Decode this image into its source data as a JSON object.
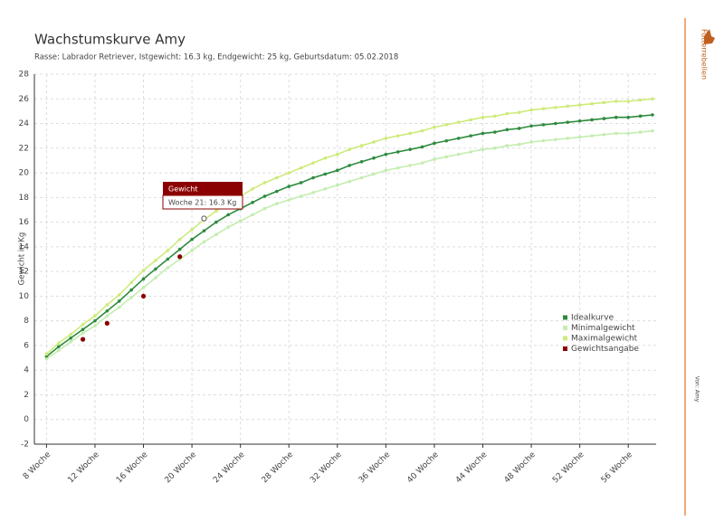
{
  "chart_data": {
    "type": "line",
    "title": "Wachstumskurve Amy",
    "subtitle": "Rasse: Labrador Retriever, Istgewicht: 16.3 kg, Endgewicht: 25 kg, Geburtsdatum: 05.02.2018",
    "y_label": "Gewicht in Kg",
    "x": [
      8,
      9,
      10,
      11,
      12,
      13,
      14,
      15,
      16,
      17,
      18,
      19,
      20,
      21,
      22,
      23,
      24,
      25,
      26,
      27,
      28,
      29,
      30,
      31,
      32,
      33,
      34,
      35,
      36,
      37,
      38,
      39,
      40,
      41,
      42,
      43,
      44,
      45,
      46,
      47,
      48,
      49,
      50,
      51,
      52,
      53,
      54,
      55,
      56,
      57,
      58
    ],
    "series": [
      {
        "name": "Idealkurve",
        "color": "#2e8b3e",
        "values": [
          5.1,
          5.9,
          6.6,
          7.3,
          8.0,
          8.8,
          9.6,
          10.5,
          11.4,
          12.2,
          13.0,
          13.8,
          14.6,
          15.3,
          16.0,
          16.6,
          17.1,
          17.6,
          18.1,
          18.5,
          18.9,
          19.2,
          19.6,
          19.9,
          20.2,
          20.6,
          20.9,
          21.2,
          21.5,
          21.7,
          21.9,
          22.1,
          22.4,
          22.6,
          22.8,
          23.0,
          23.2,
          23.3,
          23.5,
          23.6,
          23.8,
          23.9,
          24.0,
          24.1,
          24.2,
          24.3,
          24.4,
          24.5,
          24.5,
          24.6,
          24.7
        ]
      },
      {
        "name": "Minimalgewicht",
        "color": "#c4edb0",
        "values": [
          4.9,
          5.6,
          6.3,
          7.0,
          7.6,
          8.4,
          9.1,
          9.9,
          10.7,
          11.5,
          12.3,
          13.0,
          13.7,
          14.4,
          15.0,
          15.6,
          16.1,
          16.6,
          17.1,
          17.5,
          17.8,
          18.1,
          18.4,
          18.7,
          19.0,
          19.3,
          19.6,
          19.9,
          20.2,
          20.4,
          20.6,
          20.8,
          21.1,
          21.3,
          21.5,
          21.7,
          21.9,
          22.0,
          22.2,
          22.3,
          22.5,
          22.6,
          22.7,
          22.8,
          22.9,
          23.0,
          23.1,
          23.2,
          23.2,
          23.3,
          23.4
        ]
      },
      {
        "name": "Maximalgewicht",
        "color": "#cdeb7a",
        "values": [
          5.3,
          6.2,
          6.9,
          7.7,
          8.4,
          9.3,
          10.1,
          11.1,
          12.1,
          12.9,
          13.7,
          14.6,
          15.4,
          16.2,
          16.9,
          17.6,
          18.1,
          18.7,
          19.2,
          19.6,
          20.0,
          20.4,
          20.8,
          21.2,
          21.5,
          21.9,
          22.2,
          22.5,
          22.8,
          23.0,
          23.2,
          23.4,
          23.7,
          23.9,
          24.1,
          24.3,
          24.5,
          24.6,
          24.8,
          24.9,
          25.1,
          25.2,
          25.3,
          25.4,
          25.5,
          25.6,
          25.7,
          25.8,
          25.8,
          25.9,
          26.0
        ]
      },
      {
        "name": "Gewichtsangabe",
        "color": "#8b0000",
        "x": [
          11,
          13,
          16,
          19,
          21
        ],
        "values": [
          6.5,
          7.8,
          10.0,
          13.2,
          16.3
        ],
        "line": false
      }
    ],
    "tooltip": {
      "title": "Gewicht",
      "text": "Woche 21: 16.3 Kg"
    },
    "xlim": [
      7,
      58.3
    ],
    "ylim": [
      -2,
      28
    ],
    "xticks": [
      {
        "value": 8,
        "label": "8 Woche"
      },
      {
        "value": 12,
        "label": "12 Woche"
      },
      {
        "value": 16,
        "label": "16 Woche"
      },
      {
        "value": 20,
        "label": "20 Woche"
      },
      {
        "value": 24,
        "label": "24 Woche"
      },
      {
        "value": 28,
        "label": "28 Woche"
      },
      {
        "value": 32,
        "label": "32 Woche"
      },
      {
        "value": 36,
        "label": "36 Woche"
      },
      {
        "value": 40,
        "label": "40 Woche"
      },
      {
        "value": 44,
        "label": "44 Woche"
      },
      {
        "value": 48,
        "label": "48 Woche"
      },
      {
        "value": 52,
        "label": "52 Woche"
      },
      {
        "value": 56,
        "label": "56 Woche"
      }
    ],
    "yticks": [
      -2,
      0,
      2,
      4,
      6,
      8,
      10,
      12,
      14,
      16,
      18,
      20,
      22,
      24,
      26,
      28
    ],
    "grid": true,
    "legend": "right",
    "brand": "Futterrebellen",
    "footer": "Von: Amy"
  }
}
